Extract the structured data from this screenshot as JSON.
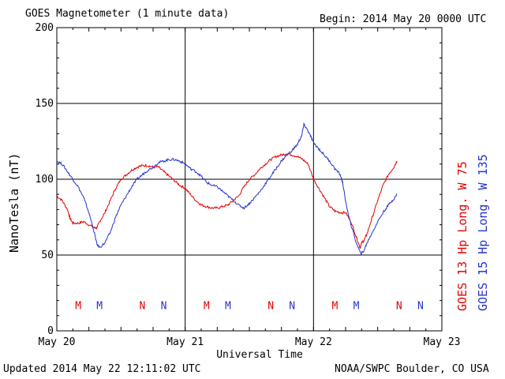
{
  "header": {
    "title": "GOES Magnetometer (1 minute data)",
    "begin": "Begin:  2014 May 20 0000 UTC"
  },
  "footer": {
    "updated": "Updated 2014 May 22 12:11:02 UTC",
    "credit": "NOAA/SWPC Boulder, CO USA"
  },
  "chart_data": {
    "type": "line",
    "xlabel": "Universal Time",
    "ylabel": "NanoTesla (nT)",
    "xlim": [
      0,
      72
    ],
    "x_unit": "hours since 2014 May 20 0000 UTC",
    "ylim": [
      0,
      200
    ],
    "yticks": [
      0,
      50,
      100,
      150,
      200
    ],
    "xticks": [
      {
        "x": 0,
        "label": "May 20"
      },
      {
        "x": 24,
        "label": "May 21"
      },
      {
        "x": 48,
        "label": "May 22"
      },
      {
        "x": 72,
        "label": "May 23"
      }
    ],
    "grid": true,
    "series": [
      {
        "name": "GOES 13 Hp  Long. W 75",
        "color": "#e60000",
        "points": [
          [
            0,
            89
          ],
          [
            1,
            86
          ],
          [
            2,
            80
          ],
          [
            2.5,
            74
          ],
          [
            3,
            71
          ],
          [
            4,
            71
          ],
          [
            5,
            72
          ],
          [
            6,
            70
          ],
          [
            7,
            68
          ],
          [
            7.5,
            68
          ],
          [
            8,
            72
          ],
          [
            9,
            78
          ],
          [
            10,
            86
          ],
          [
            11,
            94
          ],
          [
            12,
            100
          ],
          [
            13,
            103
          ],
          [
            14,
            106
          ],
          [
            15,
            108
          ],
          [
            16,
            109
          ],
          [
            17,
            109
          ],
          [
            18,
            108
          ],
          [
            19,
            108
          ],
          [
            20,
            105
          ],
          [
            21,
            102
          ],
          [
            22,
            99
          ],
          [
            23,
            96
          ],
          [
            24,
            94
          ],
          [
            25,
            90
          ],
          [
            26,
            86
          ],
          [
            27,
            83
          ],
          [
            28,
            82
          ],
          [
            29,
            81
          ],
          [
            30,
            81
          ],
          [
            31,
            82
          ],
          [
            32,
            83
          ],
          [
            33,
            86
          ],
          [
            34,
            89
          ],
          [
            35,
            95
          ],
          [
            36,
            100
          ],
          [
            37,
            103
          ],
          [
            38,
            107
          ],
          [
            39,
            110
          ],
          [
            40,
            113
          ],
          [
            41,
            115
          ],
          [
            42,
            116
          ],
          [
            43,
            117
          ],
          [
            44,
            116
          ],
          [
            45,
            115
          ],
          [
            46,
            113
          ],
          [
            47,
            110
          ],
          [
            48,
            100
          ],
          [
            49,
            94
          ],
          [
            50,
            88
          ],
          [
            51,
            82
          ],
          [
            52,
            79
          ],
          [
            53,
            78
          ],
          [
            54,
            78
          ],
          [
            55,
            72
          ],
          [
            56,
            62
          ],
          [
            56.7,
            55
          ],
          [
            57,
            58
          ],
          [
            57.5,
            60
          ],
          [
            58,
            64
          ],
          [
            59,
            75
          ],
          [
            60,
            86
          ],
          [
            61,
            96
          ],
          [
            62,
            103
          ],
          [
            63,
            108
          ],
          [
            63.6,
            112
          ]
        ]
      },
      {
        "name": "GOES 15 Hp  Long. W 135",
        "color": "#2233cc",
        "points": [
          [
            0,
            112
          ],
          [
            1,
            110
          ],
          [
            2,
            105
          ],
          [
            3,
            100
          ],
          [
            4,
            95
          ],
          [
            5,
            88
          ],
          [
            6,
            78
          ],
          [
            7,
            65
          ],
          [
            7.5,
            57
          ],
          [
            8,
            55
          ],
          [
            9,
            58
          ],
          [
            10,
            65
          ],
          [
            11,
            75
          ],
          [
            12,
            83
          ],
          [
            13,
            89
          ],
          [
            14,
            95
          ],
          [
            15,
            100
          ],
          [
            16,
            103
          ],
          [
            17,
            106
          ],
          [
            18,
            108
          ],
          [
            19,
            111
          ],
          [
            20,
            112
          ],
          [
            21,
            113
          ],
          [
            22,
            113
          ],
          [
            23,
            112
          ],
          [
            24,
            110
          ],
          [
            25,
            107
          ],
          [
            26,
            105
          ],
          [
            27,
            102
          ],
          [
            28,
            98
          ],
          [
            29,
            96
          ],
          [
            30,
            95
          ],
          [
            31,
            92
          ],
          [
            32,
            89
          ],
          [
            33,
            86
          ],
          [
            34,
            83
          ],
          [
            35,
            81
          ],
          [
            36,
            84
          ],
          [
            37,
            88
          ],
          [
            38,
            92
          ],
          [
            39,
            97
          ],
          [
            40,
            102
          ],
          [
            41,
            107
          ],
          [
            42,
            112
          ],
          [
            43,
            116
          ],
          [
            44,
            119
          ],
          [
            45,
            123
          ],
          [
            45.8,
            129
          ],
          [
            46.2,
            136
          ],
          [
            46.8,
            133
          ],
          [
            47.5,
            128
          ],
          [
            48,
            124
          ],
          [
            49,
            120
          ],
          [
            50,
            116
          ],
          [
            51,
            112
          ],
          [
            52,
            107
          ],
          [
            53,
            103
          ],
          [
            53.5,
            97
          ],
          [
            54,
            85
          ],
          [
            55,
            70
          ],
          [
            56,
            58
          ],
          [
            56.8,
            51
          ],
          [
            57.3,
            52
          ],
          [
            58,
            58
          ],
          [
            59,
            65
          ],
          [
            60,
            72
          ],
          [
            61,
            78
          ],
          [
            62,
            83
          ],
          [
            63,
            87
          ],
          [
            63.6,
            90
          ]
        ]
      }
    ],
    "annotations": [
      {
        "x": 4,
        "label": "M",
        "color": "#e60000"
      },
      {
        "x": 8,
        "label": "M",
        "color": "#2233cc"
      },
      {
        "x": 16,
        "label": "N",
        "color": "#e60000"
      },
      {
        "x": 20,
        "label": "N",
        "color": "#2233cc"
      },
      {
        "x": 28,
        "label": "M",
        "color": "#e60000"
      },
      {
        "x": 32,
        "label": "M",
        "color": "#2233cc"
      },
      {
        "x": 40,
        "label": "N",
        "color": "#e60000"
      },
      {
        "x": 44,
        "label": "N",
        "color": "#2233cc"
      },
      {
        "x": 52,
        "label": "M",
        "color": "#e60000"
      },
      {
        "x": 56,
        "label": "M",
        "color": "#2233cc"
      },
      {
        "x": 64,
        "label": "N",
        "color": "#e60000"
      },
      {
        "x": 68,
        "label": "N",
        "color": "#2233cc"
      }
    ],
    "annotation_y": 17
  }
}
